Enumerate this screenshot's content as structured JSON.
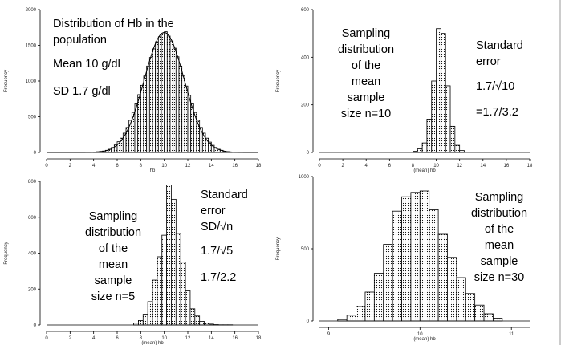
{
  "chart_data": [
    {
      "type": "histogram",
      "ylabel": "Frequency",
      "xlabel": "hb",
      "xlim": [
        0,
        18
      ],
      "ylim": [
        0,
        2000
      ],
      "xticks": [
        0,
        2,
        4,
        6,
        8,
        10,
        12,
        14,
        16,
        18
      ],
      "yticks": [
        0,
        500,
        1000,
        1500,
        2000
      ],
      "bin_width": 0.25,
      "bin_start": 4.0,
      "values": [
        5,
        10,
        15,
        20,
        30,
        45,
        70,
        105,
        150,
        200,
        270,
        350,
        450,
        560,
        680,
        810,
        940,
        1070,
        1210,
        1330,
        1450,
        1550,
        1620,
        1660,
        1690,
        1630,
        1560,
        1460,
        1340,
        1210,
        1070,
        930,
        800,
        680,
        560,
        450,
        350,
        270,
        200,
        145,
        100,
        70,
        45,
        30,
        18,
        10,
        5
      ],
      "curve": {
        "type": "normal",
        "mean": 10,
        "sd": 1.7,
        "peak": 1680
      },
      "annotations": [
        "Distribution of Hb in the",
        "population",
        "Mean 10 g/dl",
        "SD 1.7 g/dl"
      ]
    },
    {
      "type": "histogram",
      "ylabel": "Frequency",
      "xlabel": "(mean) hb",
      "xlim": [
        0,
        18
      ],
      "ylim": [
        0,
        600
      ],
      "xticks": [
        0,
        2,
        4,
        6,
        8,
        10,
        12,
        14,
        16,
        18
      ],
      "yticks": [
        0,
        200,
        400,
        600
      ],
      "bin_width": 0.4,
      "bin_start": 8.0,
      "values": [
        5,
        15,
        40,
        140,
        300,
        520,
        500,
        280,
        110,
        30,
        8
      ],
      "annotations": [
        "Sampling",
        "distribution",
        "of the",
        "mean",
        "sample",
        "size n=10",
        "Standard",
        "error",
        "1.7/√10",
        "=1.7/3.2"
      ]
    },
    {
      "type": "histogram",
      "ylabel": "Frequency",
      "xlabel": "(mean) hb",
      "xlim": [
        0,
        18
      ],
      "ylim": [
        0,
        800
      ],
      "xticks": [
        0,
        2,
        4,
        6,
        8,
        10,
        12,
        14,
        16,
        18
      ],
      "yticks": [
        0,
        200,
        400,
        600,
        800
      ],
      "bin_width": 0.4,
      "bin_start": 7.4,
      "values": [
        10,
        25,
        60,
        130,
        250,
        380,
        500,
        780,
        700,
        510,
        350,
        190,
        90,
        50,
        20,
        10,
        5,
        2,
        1,
        1,
        1
      ],
      "annotations": [
        "Sampling",
        "distribution",
        "of the",
        "mean",
        "sample",
        "size n=5",
        "Standard",
        "error",
        "SD/√n",
        "1.7/√5",
        "1.7/2.2"
      ]
    },
    {
      "type": "histogram",
      "ylabel": "Frequency",
      "xlabel": "(mean) hb",
      "xlim": [
        8.9,
        11.2
      ],
      "ylim": [
        0,
        1000
      ],
      "xticks": [
        9,
        10,
        11
      ],
      "yticks": [
        0,
        500,
        1000
      ],
      "bin_width": 0.1,
      "bin_start": 9.1,
      "values": [
        10,
        40,
        100,
        200,
        330,
        530,
        760,
        860,
        890,
        900,
        770,
        600,
        440,
        300,
        190,
        110,
        50,
        20
      ],
      "annotations": [
        "Sampling",
        "distribution",
        "of the",
        "mean",
        "sample",
        "size n=30"
      ]
    }
  ]
}
